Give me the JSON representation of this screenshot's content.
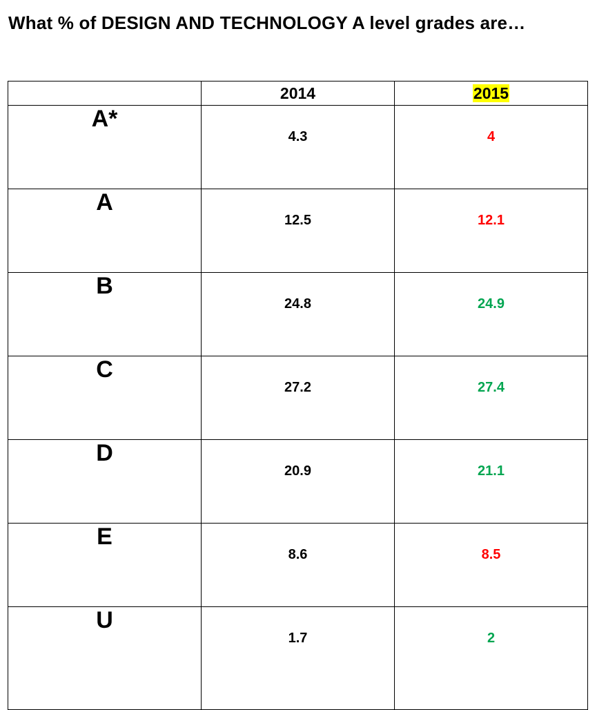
{
  "title": "What % of DESIGN AND TECHNOLOGY A level grades are…",
  "table": {
    "headers": [
      "",
      "2014",
      "2015"
    ],
    "rows": [
      {
        "grade": "A*",
        "y2014": "4.3",
        "y2015": "4",
        "y2015_color": "#ff0000"
      },
      {
        "grade": "A",
        "y2014": "12.5",
        "y2015": "12.1",
        "y2015_color": "#ff0000"
      },
      {
        "grade": "B",
        "y2014": "24.8",
        "y2015": "24.9",
        "y2015_color": "#00a550"
      },
      {
        "grade": "C",
        "y2014": "27.2",
        "y2015": "27.4",
        "y2015_color": "#00a550"
      },
      {
        "grade": "D",
        "y2014": "20.9",
        "y2015": "21.1",
        "y2015_color": "#00a550"
      },
      {
        "grade": "E",
        "y2014": "8.6",
        "y2015": "8.5",
        "y2015_color": "#ff0000"
      },
      {
        "grade": "U",
        "y2014": "1.7",
        "y2015": "2",
        "y2015_color": "#00a550"
      }
    ]
  },
  "colors": {
    "highlight": "#ffff00",
    "decrease": "#ff0000",
    "increase": "#00a550"
  }
}
